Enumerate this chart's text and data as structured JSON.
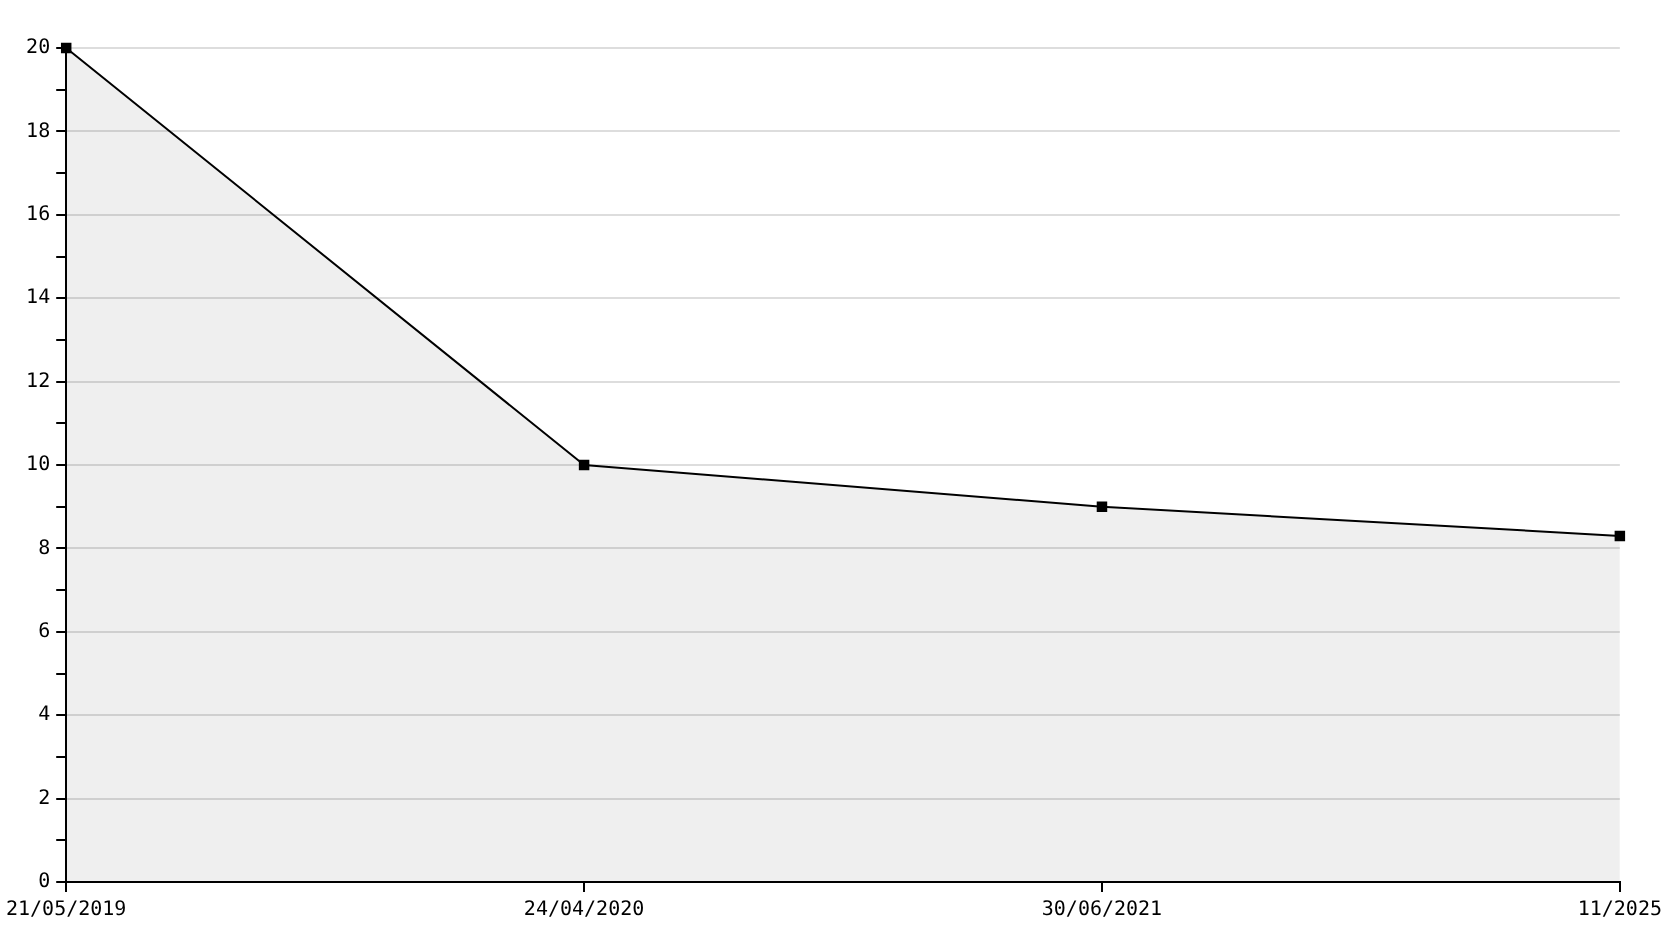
{
  "chart_data": {
    "type": "area",
    "categories": [
      "21/05/2019",
      "24/04/2020",
      "30/06/2021",
      "11/2025"
    ],
    "series": [
      {
        "color": "#000000",
        "values": [
          20,
          10,
          9,
          8.3
        ]
      }
    ],
    "ylim": [
      0,
      20
    ],
    "yticks": [
      0,
      {
        "value": 1,
        "label": null
      },
      2,
      {
        "value": 3,
        "label": null
      },
      4,
      {
        "value": 5,
        "label": null
      },
      6,
      {
        "value": 7,
        "label": null
      },
      8,
      {
        "value": 9,
        "label": null
      },
      10,
      {
        "value": 11,
        "label": null
      },
      12,
      {
        "value": 13,
        "label": null
      },
      14,
      {
        "value": 15,
        "label": null
      },
      16,
      {
        "value": 17,
        "label": null
      },
      18,
      {
        "value": 19,
        "label": null
      },
      20
    ],
    "grid": "y",
    "marker": "square",
    "legend": false
  }
}
